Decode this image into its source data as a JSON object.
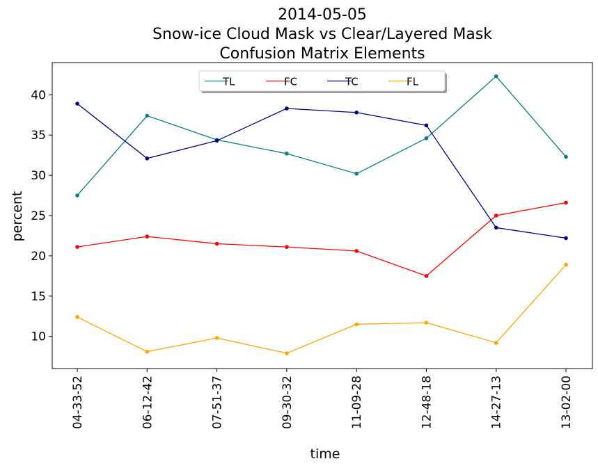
{
  "chart_data": {
    "type": "line",
    "title_lines": [
      "2014-05-05",
      "Snow-ice Cloud Mask vs Clear/Layered Mask",
      "Confusion Matrix Elements"
    ],
    "xlabel": "time",
    "ylabel": "percent",
    "categories": [
      "04-33-52",
      "06-12-42",
      "07-51-37",
      "09-30-32",
      "11-09-28",
      "12-48-18",
      "14-27-13",
      "13-02-00"
    ],
    "ylim": [
      6,
      44
    ],
    "yticks": [
      10,
      15,
      20,
      25,
      30,
      35,
      40
    ],
    "grid": false,
    "legend_position": "top-center",
    "series": [
      {
        "name": "TL",
        "color": "#008080",
        "values": [
          27.5,
          37.4,
          34.4,
          32.7,
          30.2,
          34.6,
          42.3,
          32.3
        ]
      },
      {
        "name": "FC",
        "color": "#ff0000",
        "values": [
          21.1,
          22.4,
          21.5,
          21.1,
          20.6,
          17.5,
          25.0,
          26.6
        ]
      },
      {
        "name": "TC",
        "color": "#00008b",
        "values": [
          38.9,
          32.1,
          34.3,
          38.3,
          37.8,
          36.2,
          23.5,
          22.2
        ]
      },
      {
        "name": "FL",
        "color": "#ffa500",
        "values": [
          12.4,
          8.1,
          9.8,
          7.9,
          11.5,
          11.7,
          9.2,
          18.9
        ]
      }
    ]
  }
}
